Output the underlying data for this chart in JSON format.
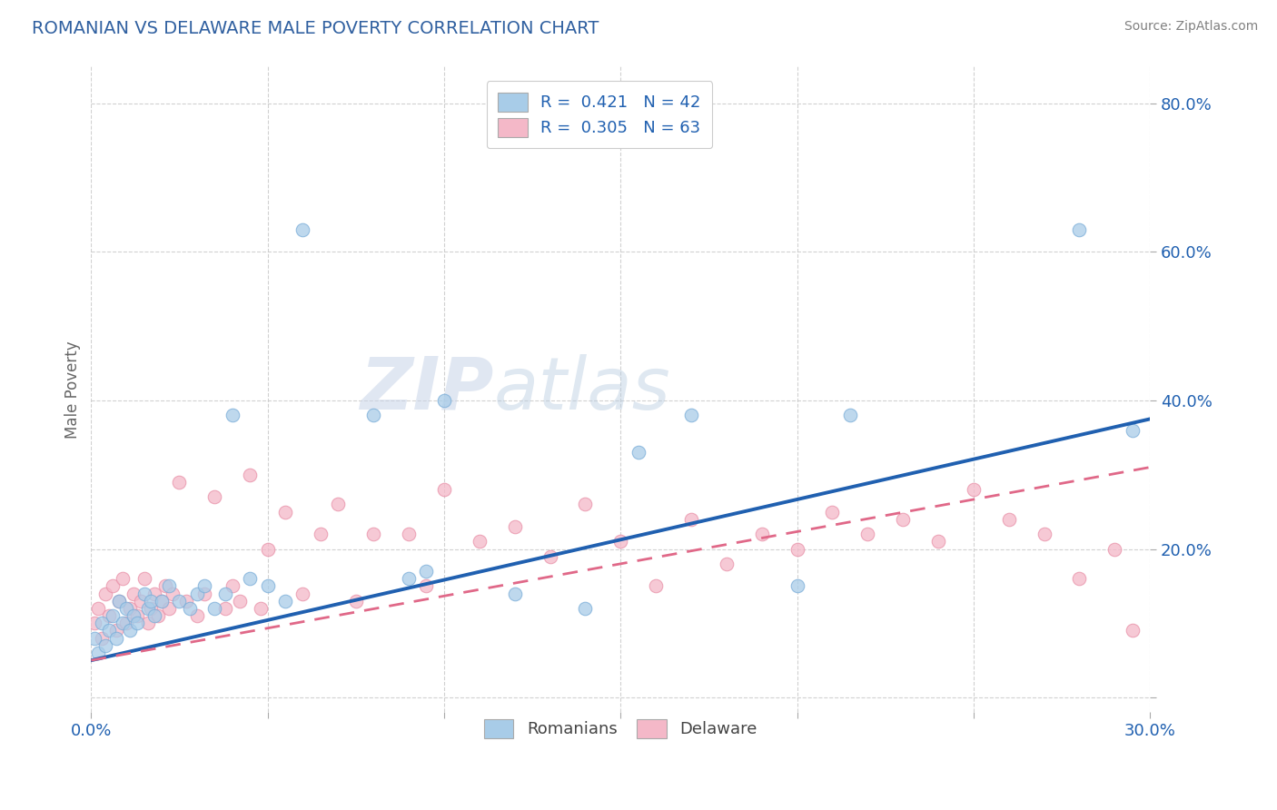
{
  "title": "ROMANIAN VS DELAWARE MALE POVERTY CORRELATION CHART",
  "source": "Source: ZipAtlas.com",
  "ylabel": "Male Poverty",
  "xmin": 0.0,
  "xmax": 0.3,
  "ymin": -0.02,
  "ymax": 0.85,
  "yticks": [
    0.0,
    0.2,
    0.4,
    0.6,
    0.8
  ],
  "ytick_labels": [
    "",
    "20.0%",
    "40.0%",
    "60.0%",
    "80.0%"
  ],
  "xticks": [
    0.0,
    0.05,
    0.1,
    0.15,
    0.2,
    0.25,
    0.3
  ],
  "legend_r1": "R =  0.421   N = 42",
  "legend_r2": "R =  0.305   N = 63",
  "blue_color": "#a8cce8",
  "pink_color": "#f4b8c8",
  "blue_scatter_edge": "#7aadd8",
  "pink_scatter_edge": "#e890a8",
  "blue_line_color": "#2060b0",
  "pink_line_color": "#e06888",
  "title_color": "#3060a0",
  "source_color": "#808080",
  "watermark_zip": "ZIP",
  "watermark_atlas": "atlas",
  "blue_line_x": [
    0.0,
    0.3
  ],
  "blue_line_y": [
    0.05,
    0.375
  ],
  "pink_line_x": [
    0.0,
    0.3
  ],
  "pink_line_y": [
    0.05,
    0.31
  ],
  "blue_scatter_x": [
    0.001,
    0.002,
    0.003,
    0.004,
    0.005,
    0.006,
    0.007,
    0.008,
    0.009,
    0.01,
    0.011,
    0.012,
    0.013,
    0.015,
    0.016,
    0.017,
    0.018,
    0.02,
    0.022,
    0.025,
    0.028,
    0.03,
    0.032,
    0.035,
    0.038,
    0.04,
    0.045,
    0.05,
    0.055,
    0.06,
    0.08,
    0.09,
    0.095,
    0.1,
    0.12,
    0.14,
    0.155,
    0.17,
    0.2,
    0.215,
    0.28,
    0.295
  ],
  "blue_scatter_y": [
    0.08,
    0.06,
    0.1,
    0.07,
    0.09,
    0.11,
    0.08,
    0.13,
    0.1,
    0.12,
    0.09,
    0.11,
    0.1,
    0.14,
    0.12,
    0.13,
    0.11,
    0.13,
    0.15,
    0.13,
    0.12,
    0.14,
    0.15,
    0.12,
    0.14,
    0.38,
    0.16,
    0.15,
    0.13,
    0.63,
    0.38,
    0.16,
    0.17,
    0.4,
    0.14,
    0.12,
    0.33,
    0.38,
    0.15,
    0.38,
    0.63,
    0.36
  ],
  "pink_scatter_x": [
    0.001,
    0.002,
    0.003,
    0.004,
    0.005,
    0.006,
    0.007,
    0.008,
    0.009,
    0.01,
    0.011,
    0.012,
    0.013,
    0.014,
    0.015,
    0.016,
    0.017,
    0.018,
    0.019,
    0.02,
    0.021,
    0.022,
    0.023,
    0.025,
    0.027,
    0.03,
    0.032,
    0.035,
    0.038,
    0.04,
    0.042,
    0.045,
    0.048,
    0.05,
    0.055,
    0.06,
    0.065,
    0.07,
    0.075,
    0.08,
    0.09,
    0.095,
    0.1,
    0.11,
    0.12,
    0.13,
    0.14,
    0.15,
    0.16,
    0.17,
    0.18,
    0.19,
    0.2,
    0.21,
    0.22,
    0.23,
    0.24,
    0.25,
    0.26,
    0.27,
    0.28,
    0.29,
    0.295
  ],
  "pink_scatter_y": [
    0.1,
    0.12,
    0.08,
    0.14,
    0.11,
    0.15,
    0.09,
    0.13,
    0.16,
    0.1,
    0.12,
    0.14,
    0.11,
    0.13,
    0.16,
    0.1,
    0.12,
    0.14,
    0.11,
    0.13,
    0.15,
    0.12,
    0.14,
    0.29,
    0.13,
    0.11,
    0.14,
    0.27,
    0.12,
    0.15,
    0.13,
    0.3,
    0.12,
    0.2,
    0.25,
    0.14,
    0.22,
    0.26,
    0.13,
    0.22,
    0.22,
    0.15,
    0.28,
    0.21,
    0.23,
    0.19,
    0.26,
    0.21,
    0.15,
    0.24,
    0.18,
    0.22,
    0.2,
    0.25,
    0.22,
    0.24,
    0.21,
    0.28,
    0.24,
    0.22,
    0.16,
    0.2,
    0.09
  ],
  "background_color": "#ffffff",
  "grid_color": "#cccccc"
}
